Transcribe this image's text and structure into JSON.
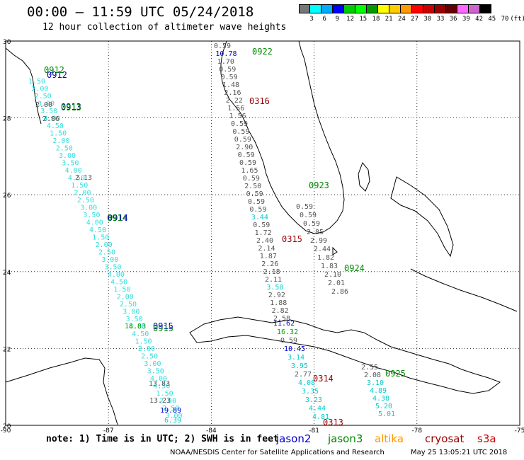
{
  "header": {
    "title": "00:00 — 11:59 UTC 05/24/2018",
    "subtitle": "12 hour collection of altimeter wave heights"
  },
  "color_scale": {
    "colors": [
      "#777777",
      "#00ffff",
      "#00aaff",
      "#0000ff",
      "#00cc00",
      "#00ff00",
      "#009900",
      "#ffff00",
      "#ffcc00",
      "#ff9900",
      "#ff0000",
      "#cc0000",
      "#990000",
      "#660000",
      "#ff66ff",
      "#cc66cc",
      "#000000"
    ],
    "labels": [
      "3",
      "6",
      "9",
      "12",
      "15",
      "18",
      "21",
      "24",
      "27",
      "30",
      "33",
      "36",
      "39",
      "42",
      "45",
      "70",
      "(ft)"
    ]
  },
  "axes": {
    "x_ticks": [
      "-90",
      "-87",
      "-84",
      "-81",
      "-78",
      "-75"
    ],
    "y_ticks": [
      "30",
      "28",
      "26",
      "24",
      "22",
      "20"
    ]
  },
  "passes": [
    {
      "id": "0912",
      "sat": "jason3"
    },
    {
      "id": "0912",
      "sat": "jason2"
    },
    {
      "id": "0913",
      "sat": "jason2"
    },
    {
      "id": "0913",
      "sat": "jason3"
    },
    {
      "id": "0914",
      "sat": "jason2"
    },
    {
      "id": "0914",
      "sat": "jason3"
    },
    {
      "id": "0915",
      "sat": "jason2"
    },
    {
      "id": "0915",
      "sat": "jason3"
    },
    {
      "id": "0922",
      "sat": "jason3"
    },
    {
      "id": "0923",
      "sat": "jason3"
    },
    {
      "id": "0924",
      "sat": "jason3"
    },
    {
      "id": "0925",
      "sat": "jason3"
    },
    {
      "id": "0316",
      "sat": "cryosat"
    },
    {
      "id": "0315",
      "sat": "cryosat"
    },
    {
      "id": "0314",
      "sat": "cryosat"
    },
    {
      "id": "0313",
      "sat": "cryosat"
    }
  ],
  "track_values_center": [
    "0.59",
    "10.78",
    "1.70",
    "0.59",
    "0.59",
    "1.48",
    "2.16",
    "2.22",
    "1.56",
    "1.56",
    "0.59",
    "0.59",
    "0.59",
    "2.90",
    "0.59",
    "0.59",
    "1.65",
    "0.59",
    "2.50",
    "0.59",
    "0.59",
    "0.59",
    "3.44",
    "0.59",
    "1.72",
    "2.40",
    "2.14",
    "1.87",
    "2.26",
    "2.18",
    "2.11",
    "3.50",
    "2.92",
    "1.88",
    "2.82",
    "2.58"
  ],
  "track_values_east": [
    "0.59",
    "0.59",
    "0.59",
    "2.85",
    "2.99",
    "2.44",
    "1.82",
    "1.83",
    "2.10",
    "2.01",
    "2.86"
  ],
  "track_values_south": [
    "11.62",
    "16.32",
    "0.59",
    "10.45",
    "3.14",
    "3.95",
    "2.77",
    "4.08",
    "3.35",
    "3.23",
    "4.44",
    "4.81"
  ],
  "track_values_se": [
    "2.55",
    "2.08",
    "3.10",
    "4.89",
    "4.38",
    "5.20",
    "5.01"
  ],
  "track_values_west": [
    "2.00",
    "2.86",
    "2.13",
    "18.83",
    "13.83",
    "13.23",
    "19.89",
    "6.39"
  ],
  "footer": {
    "note": "note: 1) Time is in UTC; 2) SWH is in feet",
    "legend": [
      {
        "name": "jason2",
        "color": "#0000cc"
      },
      {
        "name": "jason3",
        "color": "#008800"
      },
      {
        "name": "altika",
        "color": "#ff9900"
      },
      {
        "name": "cryosat",
        "color": "#990000"
      },
      {
        "name": "s3a",
        "color": "#cc0000"
      }
    ],
    "credit": "NOAA/NESDIS Center for Satellite Applications and Research",
    "timestamp": "May 25 13:05:21 UTC 2018"
  }
}
